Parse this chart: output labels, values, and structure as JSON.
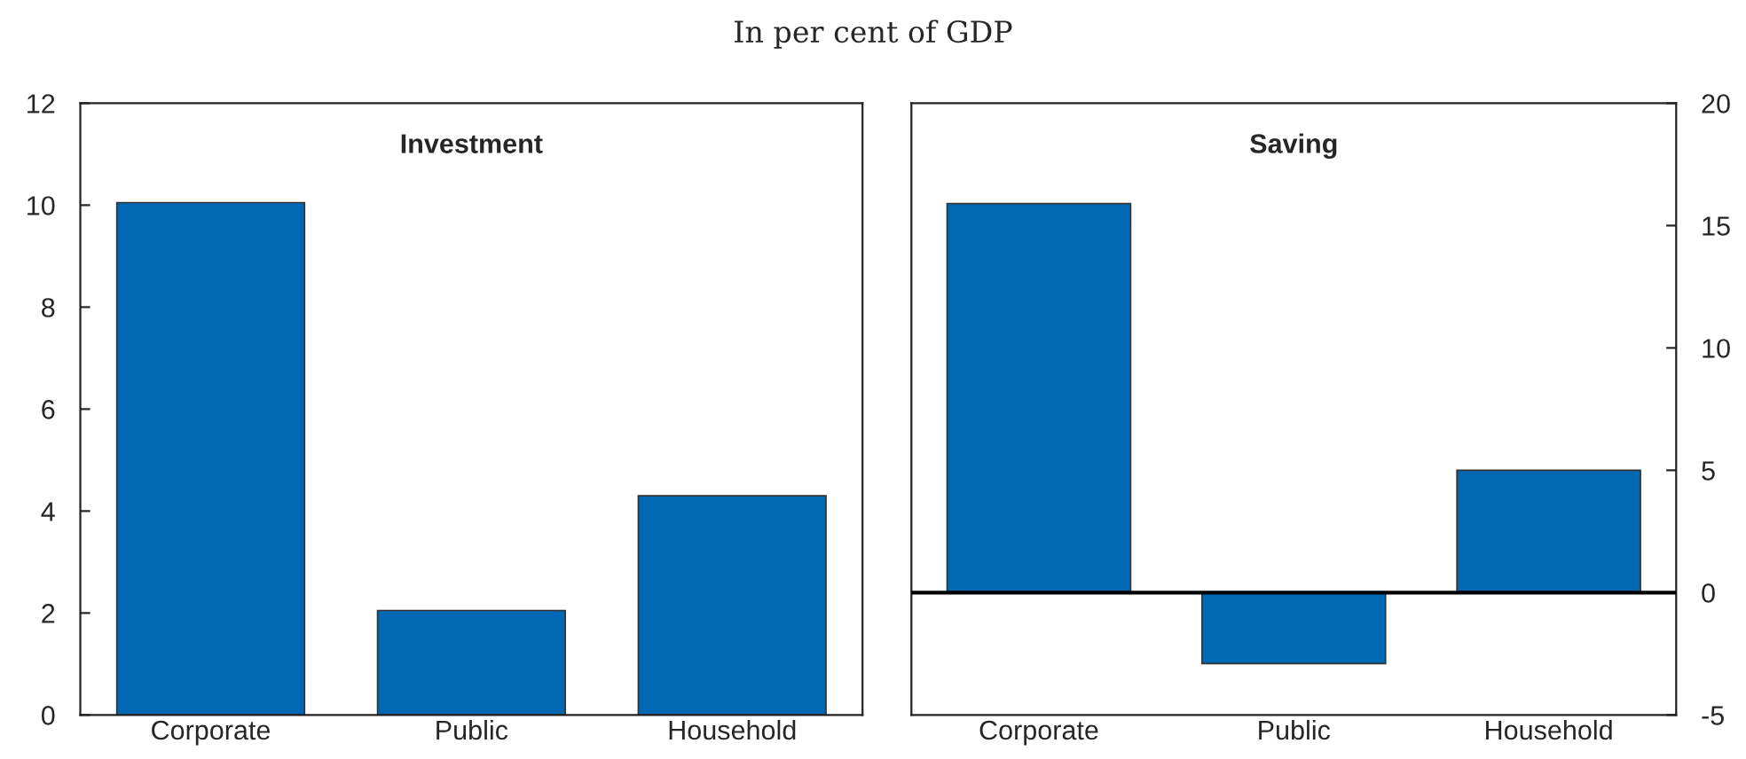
{
  "chart_data": [
    {
      "type": "bar",
      "title": "Investment",
      "subtitle": "In per cent of GDP",
      "categories": [
        "Corporate",
        "Public",
        "Household"
      ],
      "series": [
        {
          "color": "#0068b4",
          "values": [
            10.05,
            2.05,
            4.3
          ]
        }
      ],
      "ylim": [
        0,
        12
      ],
      "yticks": [
        0,
        2,
        4,
        6,
        8,
        10,
        12
      ],
      "grid": false,
      "legend": false
    },
    {
      "type": "bar",
      "title": "Saving",
      "categories": [
        "Corporate",
        "Public",
        "Household"
      ],
      "series": [
        {
          "color": "#0068b4",
          "values": [
            15.9,
            -2.9,
            5.0
          ]
        }
      ],
      "ylim": [
        -5,
        20
      ],
      "yticks": [
        -5,
        0,
        5,
        10,
        15,
        20
      ],
      "grid": false,
      "legend": false,
      "ref_lines": [
        {
          "axis": "y",
          "value": 0,
          "color": "#000000"
        }
      ]
    }
  ]
}
